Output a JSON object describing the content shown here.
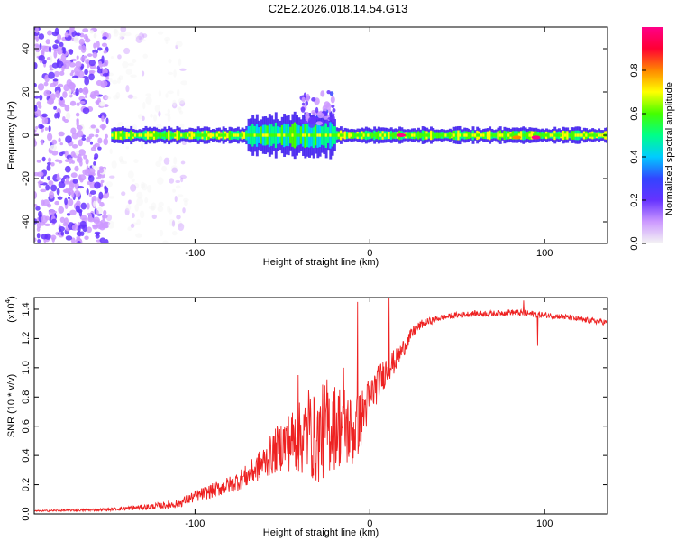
{
  "title": "C2E2.2026.018.14.54.G13",
  "chart_data": [
    {
      "type": "heatmap",
      "name": "spectrogram",
      "xlabel": "Height of straight line (km)",
      "ylabel": "Frequency (Hz)",
      "xlim": [
        -192,
        136
      ],
      "ylim": [
        -50,
        50
      ],
      "x_ticks": [
        -100,
        0,
        100
      ],
      "y_ticks": [
        40,
        20,
        0,
        -20,
        -40
      ],
      "colorbar": {
        "label": "Normalized spectral amplitude",
        "range": [
          0,
          1
        ],
        "ticks": [
          "0.0",
          "0.2",
          "0.4",
          "0.6",
          "0.8"
        ],
        "tick_values": [
          0,
          0.2,
          0.4,
          0.6,
          0.8
        ],
        "colors": [
          "#f4f4f4",
          "#cc99ff",
          "#6633ff",
          "#3344ff",
          "#00ccff",
          "#00ff88",
          "#44ff00",
          "#ffff00",
          "#ff8800",
          "#ff0033",
          "#ff0088"
        ]
      },
      "features": [
        {
          "name": "noise scatter",
          "x_range": [
            -192,
            -150
          ],
          "freq_range": [
            -50,
            50
          ],
          "amplitude": 0.15
        },
        {
          "name": "faint scatter",
          "x_range": [
            -150,
            -105
          ],
          "freq_range": [
            -50,
            50
          ],
          "amplitude": 0.05
        },
        {
          "name": "carrier band",
          "x_range": [
            -148,
            136
          ],
          "center_freq": 0,
          "half_width_hz": 3,
          "amplitude": 0.45
        },
        {
          "name": "broadened region",
          "x_range": [
            -70,
            -20
          ],
          "center_freq": 0,
          "half_width_hz": 8,
          "amplitude": 0.35
        },
        {
          "name": "upper plume",
          "x_range": [
            -40,
            -20
          ],
          "freq_range": [
            5,
            20
          ],
          "amplitude": 0.2
        },
        {
          "name": "peak",
          "x": 18,
          "freq": 0,
          "amplitude": 0.95
        },
        {
          "name": "peak",
          "x": 95,
          "freq": -1,
          "amplitude": 0.95
        },
        {
          "name": "peak",
          "x": 84,
          "freq": -1,
          "amplitude": 0.8
        }
      ]
    },
    {
      "type": "line",
      "name": "snr",
      "xlabel": "Height of straight line (km)",
      "ylabel": "SNR (10 * v/v)",
      "y_scale_label": "(x10",
      "y_scale_exp": "4",
      "xlim": [
        -192,
        136
      ],
      "ylim": [
        0,
        1.48
      ],
      "x_ticks": [
        -100,
        0,
        100
      ],
      "y_ticks": [
        "0.0",
        "0.2",
        "0.4",
        "0.6",
        "0.8",
        "1.0",
        "1.2",
        "1.4"
      ],
      "y_tick_values": [
        0,
        0.2,
        0.4,
        0.6,
        0.8,
        1.0,
        1.2,
        1.4
      ],
      "color": "#ee2222",
      "x": [
        -192,
        -150,
        -125,
        -110,
        -100,
        -90,
        -80,
        -70,
        -60,
        -50,
        -40,
        -35,
        -30,
        -25,
        -20,
        -15,
        -10,
        -5,
        0,
        5,
        10,
        15,
        20,
        25,
        30,
        40,
        50,
        60,
        70,
        80,
        90,
        100,
        110,
        120,
        136
      ],
      "values": [
        0.02,
        0.03,
        0.05,
        0.07,
        0.12,
        0.16,
        0.2,
        0.26,
        0.36,
        0.48,
        0.52,
        0.55,
        0.5,
        0.6,
        0.6,
        0.62,
        0.55,
        0.65,
        0.8,
        0.9,
        1.0,
        1.05,
        1.15,
        1.25,
        1.3,
        1.34,
        1.36,
        1.37,
        1.37,
        1.38,
        1.37,
        1.36,
        1.35,
        1.33,
        1.31
      ],
      "noise": [
        0.005,
        0.01,
        0.02,
        0.03,
        0.04,
        0.05,
        0.06,
        0.08,
        0.12,
        0.18,
        0.25,
        0.3,
        0.3,
        0.35,
        0.3,
        0.3,
        0.25,
        0.2,
        0.15,
        0.12,
        0.1,
        0.08,
        0.06,
        0.04,
        0.03,
        0.02,
        0.02,
        0.02,
        0.02,
        0.02,
        0.025,
        0.02,
        0.02,
        0.02,
        0.02
      ],
      "spikes": [
        {
          "x": -41,
          "y": 0.95
        },
        {
          "x": -35,
          "y": 0.85
        },
        {
          "x": -15,
          "y": 1.0
        },
        {
          "x": -7,
          "y": 1.45
        },
        {
          "x": 11,
          "y": 1.48
        },
        {
          "x": 88,
          "y": 1.46
        },
        {
          "x": 96,
          "y": 1.15
        }
      ]
    }
  ]
}
